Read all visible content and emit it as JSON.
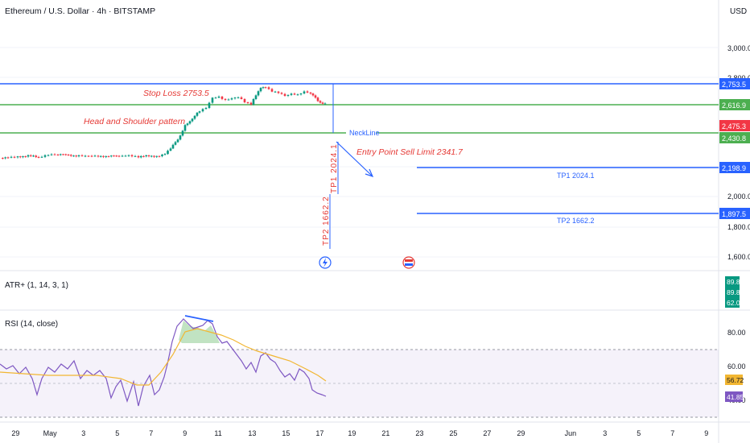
{
  "header": {
    "symbol_title": "Ethereum / U.S. Dollar · 4h · BITSTAMP",
    "currency": "USD"
  },
  "annotations": {
    "stop_loss": "Stop Loss  2753.5",
    "pattern": "Head and Shoulder pattern",
    "neckline": "NeckLine",
    "entry": "Entry Point Sell Limit 2341.7",
    "tp1_vertical": "TP1 2024.1",
    "tp2_vertical": "TP2 1662.2",
    "tp1_line": "TP1 2024.1",
    "tp2_line": "TP2 1662.2"
  },
  "price_axis": {
    "ticks": [
      "3,000.0",
      "2,800.0",
      "2,000.0",
      "1,800.0",
      "1,600.0"
    ],
    "right_labels": [
      "2,753.5",
      "2,616.9",
      "2,475.3",
      "2,430.8",
      "2,198.9",
      "1,897.5"
    ]
  },
  "atr_panel": {
    "title": "ATR+ (1, 14, 3, 1)",
    "values": [
      "89.8",
      "89.8",
      "62.0"
    ]
  },
  "rsi_panel": {
    "title": "RSI (14, close)",
    "ticks": [
      "80.00",
      "60.00",
      "40.00"
    ],
    "values": [
      "56.72",
      "41.85"
    ]
  },
  "time_axis": {
    "labels": [
      "29",
      "May",
      "3",
      "5",
      "7",
      "9",
      "11",
      "13",
      "15",
      "17",
      "19",
      "21",
      "23",
      "25",
      "27",
      "29",
      "Jun",
      "3",
      "5",
      "7",
      "9"
    ]
  },
  "colors": {
    "up": "#089981",
    "down": "#f23645",
    "blue_line": "#2962ff",
    "green_line": "#4caf50",
    "rsi_line": "#7e57c2",
    "rsi_ma": "#f2b632",
    "annotation_red": "#e53935"
  },
  "chart_data": {
    "type": "candlestick",
    "timeframe": "4h",
    "close_path": [
      [
        0,
        1745
      ],
      [
        10,
        1760
      ],
      [
        22,
        1765
      ],
      [
        35,
        1775
      ],
      [
        48,
        1750
      ],
      [
        60,
        1780
      ],
      [
        72,
        1790
      ],
      [
        85,
        1785
      ],
      [
        98,
        1775
      ],
      [
        110,
        1780
      ],
      [
        122,
        1770
      ],
      [
        135,
        1772
      ],
      [
        148,
        1765
      ],
      [
        160,
        1770
      ],
      [
        172,
        1758
      ],
      [
        185,
        1770
      ],
      [
        198,
        1775
      ],
      [
        205,
        1800
      ],
      [
        212,
        1870
      ],
      [
        218,
        1960
      ],
      [
        224,
        2050
      ],
      [
        230,
        2180
      ],
      [
        236,
        2250
      ],
      [
        242,
        2320
      ],
      [
        248,
        2380
      ],
      [
        256,
        2420
      ],
      [
        264,
        2560
      ],
      [
        272,
        2580
      ],
      [
        280,
        2540
      ],
      [
        288,
        2560
      ],
      [
        296,
        2570
      ],
      [
        304,
        2500
      ],
      [
        312,
        2470
      ],
      [
        318,
        2600
      ],
      [
        324,
        2710
      ],
      [
        330,
        2700
      ],
      [
        338,
        2650
      ],
      [
        346,
        2640
      ],
      [
        354,
        2600
      ],
      [
        362,
        2620
      ],
      [
        370,
        2600
      ],
      [
        378,
        2640
      ],
      [
        386,
        2620
      ],
      [
        392,
        2560
      ],
      [
        398,
        2500
      ],
      [
        404,
        2475.3
      ]
    ],
    "horizontal_levels": [
      2753.5,
      2616.9,
      2430.8,
      2198.9,
      1897.5
    ],
    "last_price": 2475.3,
    "rsi": {
      "last": 41.85,
      "ma_last": 56.72
    }
  }
}
